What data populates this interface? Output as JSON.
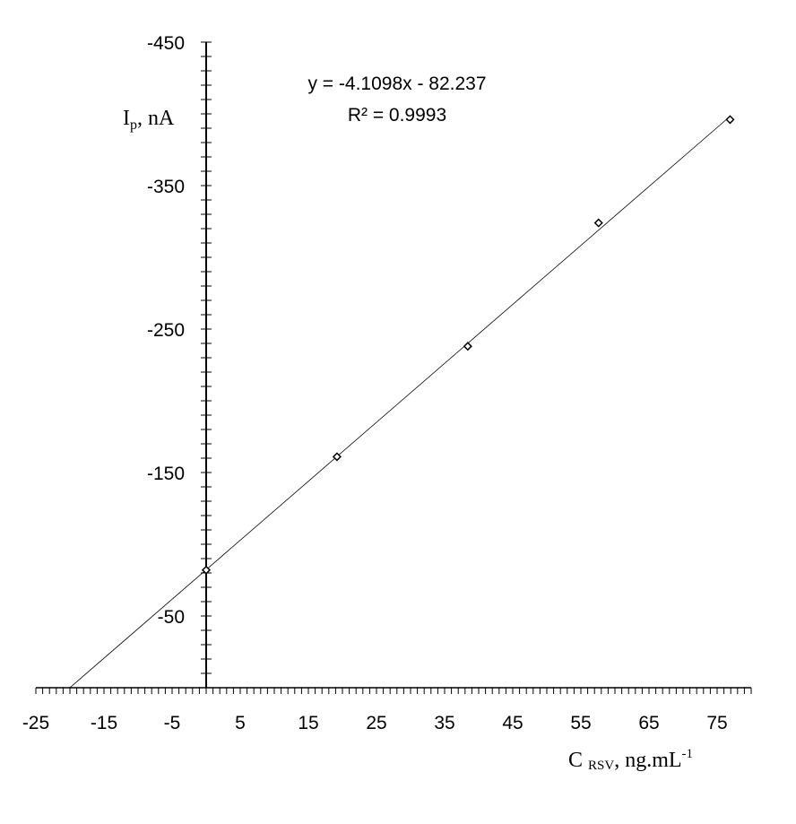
{
  "chart_data": {
    "type": "scatter",
    "x": [
      0,
      19.2,
      38.4,
      57.6,
      76.9
    ],
    "values": [
      -82,
      -161,
      -238,
      -324,
      -396
    ],
    "color": "#000000",
    "xlim": [
      -25,
      80
    ],
    "xticks": [
      -25,
      -15,
      -5,
      5,
      15,
      25,
      35,
      45,
      55,
      65,
      75
    ],
    "x_minor_step": 1,
    "ylim": [
      0,
      -450
    ],
    "yticks": [
      -450,
      -350,
      -250,
      -150,
      -50
    ],
    "y_minor_step": 10,
    "ylabel": {
      "main": "I",
      "sub": "p",
      "rest": ", nA"
    },
    "xlabel": {
      "main": "C ",
      "sub": "RSV",
      "rest": ", ng.mL",
      "sup": "-1"
    },
    "trendline": {
      "equation": "y = -4.1098x - 82.237",
      "r2_label": "R² = 0.9993",
      "slope": -4.1098,
      "intercept": -82.237
    }
  }
}
